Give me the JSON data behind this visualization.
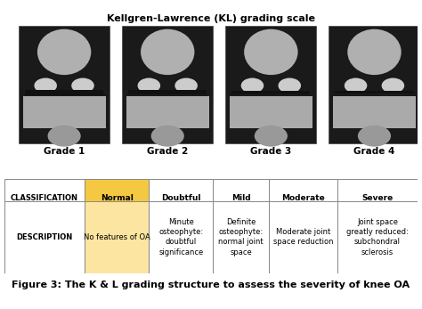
{
  "title_xray": "Kellgren-Lawrence (KL) grading scale",
  "grades": [
    "Grade 1",
    "Grade 2",
    "Grade 3",
    "Grade 4"
  ],
  "classification_labels": [
    "CLASSIFICATION",
    "Normal",
    "Doubtful",
    "Mild",
    "Moderate",
    "Severe"
  ],
  "description_labels": [
    "DESCRIPTION",
    "No features of OA",
    "Minute\nosteophyte:\ndoubtful\nsignificance",
    "Definite\nosteophyte:\nnormal joint\nspace",
    "Moderate joint\nspace reduction",
    "Joint space\ngreatly reduced:\nsubchondral\nsclerosis"
  ],
  "figure_caption": "Figure 3: The K & L grading structure to assess the severity of knee OA",
  "bg_color_xray": "#b8cce4",
  "bg_color_table": "#ffffff",
  "header_bg": "#b8cce4",
  "normal_cell_bg": "#f5c842",
  "normal_desc_bg": "#fce5a0",
  "col_left_bg": "#ffffff",
  "row_lines": "#cccccc",
  "border_color": "#999999",
  "title_fontsize": 8,
  "grade_fontsize": 7.5,
  "table_fontsize": 6.5,
  "caption_fontsize": 8,
  "xray_area_color": "#606060",
  "xray_bg": "#c5d8ea"
}
